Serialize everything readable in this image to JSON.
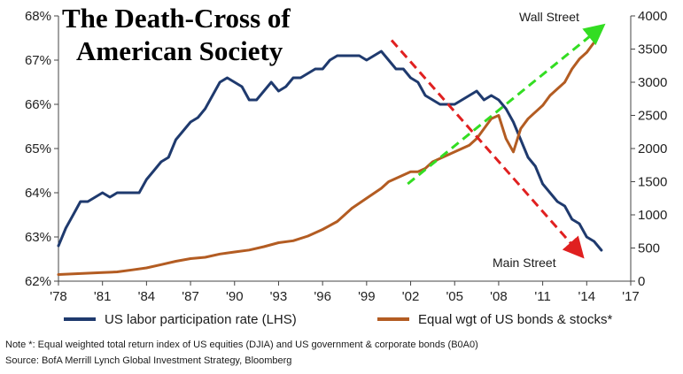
{
  "chart_data": {
    "type": "line",
    "title_lines": [
      "The Death-Cross of",
      "American Society"
    ],
    "x_ticks": [
      "'78",
      "'81",
      "'84",
      "'87",
      "'90",
      "'93",
      "'96",
      "'99",
      "'02",
      "'05",
      "'08",
      "'11",
      "'14",
      "'17"
    ],
    "xlim": [
      1978,
      2017
    ],
    "y_left_ticks": [
      "62%",
      "63%",
      "64%",
      "65%",
      "66%",
      "67%",
      "68%"
    ],
    "y_left_lim": [
      62,
      68
    ],
    "y_right_ticks": [
      "0",
      "500",
      "1000",
      "1500",
      "2000",
      "2500",
      "3000",
      "3500",
      "4000"
    ],
    "y_right_lim": [
      0,
      4000
    ],
    "grid": false,
    "legend_position": "bottom",
    "series": [
      {
        "name": "US labor participation rate (LHS)",
        "axis": "left",
        "color": "#1f3a6e",
        "x": [
          1978.0,
          1978.5,
          1979.0,
          1979.5,
          1980.0,
          1980.5,
          1981.0,
          1981.5,
          1982.0,
          1982.5,
          1983.0,
          1983.5,
          1984.0,
          1984.5,
          1985.0,
          1985.5,
          1986.0,
          1986.5,
          1987.0,
          1987.5,
          1988.0,
          1988.5,
          1989.0,
          1989.5,
          1990.0,
          1990.5,
          1991.0,
          1991.5,
          1992.0,
          1992.5,
          1993.0,
          1993.5,
          1994.0,
          1994.5,
          1995.0,
          1995.5,
          1996.0,
          1996.5,
          1997.0,
          1997.5,
          1998.0,
          1998.5,
          1999.0,
          1999.5,
          2000.0,
          2000.5,
          2001.0,
          2001.5,
          2002.0,
          2002.5,
          2003.0,
          2003.5,
          2004.0,
          2004.5,
          2005.0,
          2005.5,
          2006.0,
          2006.5,
          2007.0,
          2007.5,
          2008.0,
          2008.5,
          2009.0,
          2009.5,
          2010.0,
          2010.5,
          2011.0,
          2011.5,
          2012.0,
          2012.5,
          2013.0,
          2013.5,
          2014.0,
          2014.5,
          2015.0
        ],
        "values": [
          62.8,
          63.2,
          63.5,
          63.8,
          63.8,
          63.9,
          64.0,
          63.9,
          64.0,
          64.0,
          64.0,
          64.0,
          64.3,
          64.5,
          64.7,
          64.8,
          65.2,
          65.4,
          65.6,
          65.7,
          65.9,
          66.2,
          66.5,
          66.6,
          66.5,
          66.4,
          66.1,
          66.1,
          66.3,
          66.5,
          66.3,
          66.4,
          66.6,
          66.6,
          66.7,
          66.8,
          66.8,
          67.0,
          67.1,
          67.1,
          67.1,
          67.1,
          67.0,
          67.1,
          67.2,
          67.0,
          66.8,
          66.8,
          66.6,
          66.5,
          66.2,
          66.1,
          66.0,
          66.0,
          66.0,
          66.1,
          66.2,
          66.3,
          66.1,
          66.2,
          66.1,
          65.9,
          65.6,
          65.2,
          64.8,
          64.6,
          64.2,
          64.0,
          63.8,
          63.7,
          63.4,
          63.3,
          63.0,
          62.9,
          62.7
        ]
      },
      {
        "name": "Equal wgt of US bonds & stocks*",
        "axis": "right",
        "color": "#b35c22",
        "x": [
          1978.0,
          1979.0,
          1980.0,
          1981.0,
          1982.0,
          1983.0,
          1984.0,
          1985.0,
          1986.0,
          1987.0,
          1988.0,
          1989.0,
          1990.0,
          1991.0,
          1992.0,
          1993.0,
          1994.0,
          1995.0,
          1996.0,
          1997.0,
          1998.0,
          1999.0,
          2000.0,
          2000.5,
          2001.0,
          2001.5,
          2002.0,
          2002.5,
          2003.0,
          2003.5,
          2004.0,
          2004.5,
          2005.0,
          2005.5,
          2006.0,
          2006.5,
          2007.0,
          2007.5,
          2008.0,
          2008.5,
          2009.0,
          2009.5,
          2010.0,
          2010.5,
          2011.0,
          2011.5,
          2012.0,
          2012.5,
          2013.0,
          2013.5,
          2014.0,
          2014.5,
          2015.0
        ],
        "values": [
          100,
          110,
          120,
          130,
          140,
          170,
          200,
          250,
          300,
          340,
          360,
          410,
          440,
          470,
          520,
          580,
          610,
          680,
          780,
          900,
          1100,
          1250,
          1400,
          1500,
          1550,
          1600,
          1650,
          1650,
          1700,
          1800,
          1850,
          1900,
          1950,
          2000,
          2050,
          2150,
          2300,
          2450,
          2500,
          2150,
          1950,
          2300,
          2450,
          2550,
          2650,
          2800,
          2900,
          3000,
          3200,
          3350,
          3450,
          3600,
          3800
        ]
      }
    ],
    "annotations": {
      "wall_street": "Wall Street",
      "main_street": "Main Street"
    },
    "trend_arrows": [
      {
        "name": "decline-arrow",
        "color": "#e02020",
        "from": {
          "x": 2000.7,
          "y_left": 67.45
        },
        "to": {
          "x": 2013.6,
          "y_left": 62.6
        }
      },
      {
        "name": "rise-arrow",
        "color": "#33dd22",
        "from": {
          "x": 2001.8,
          "y_left": 64.2
        },
        "to": {
          "x": 2015.0,
          "y_left": 67.75
        }
      }
    ]
  },
  "note_lines": [
    "Note *: Equal weighted total return index of US equities (DJIA) and US government & corporate bonds (B0A0)",
    "Source: BofA Merrill Lynch Global Investment Strategy, Bloomberg"
  ]
}
